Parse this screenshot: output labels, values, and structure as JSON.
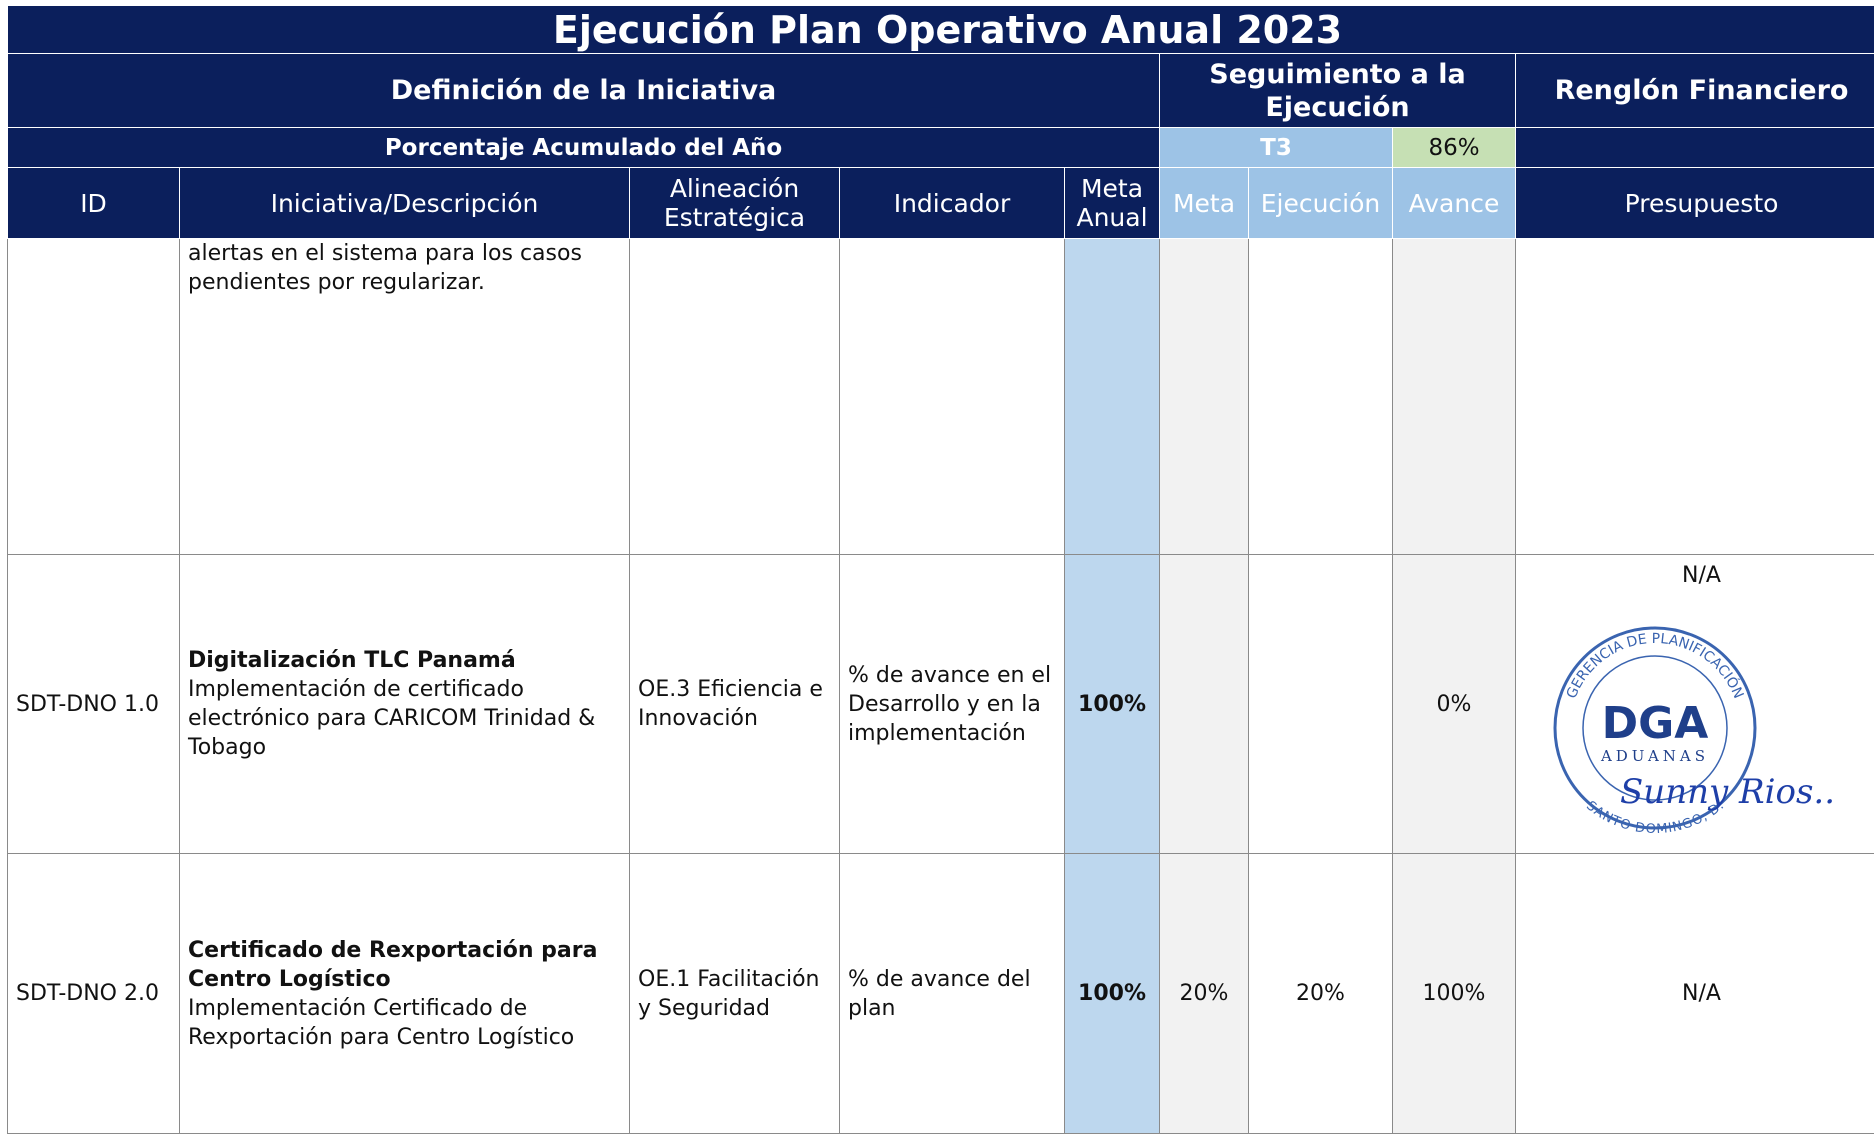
{
  "title": "Ejecución Plan Operativo Anual 2023",
  "groups": [
    "Definición de la Iniciativa",
    "Seguimiento a la Ejecución",
    "Renglón Financiero"
  ],
  "accumulated": {
    "label": "Porcentaje Acumulado del Año",
    "period": "T3",
    "value": "86%"
  },
  "columns": [
    "ID",
    "Iniciativa/Descripción",
    "Alineación Estratégica",
    "Indicador",
    "Meta Anual",
    "Meta",
    "Ejecución",
    "Avance",
    "Presupuesto"
  ],
  "rows": [
    {
      "description": "alertas en el sistema para los casos pendientes por regularizar."
    },
    {
      "id": "SDT-DNO 1.0",
      "title": "Digitalización TLC Panamá",
      "description": "Implementación de certificado electrónico para CARICOM Trinidad & Tobago",
      "alineacion": "OE.3 Eficiencia e Innovación",
      "indicador": "% de avance en el Desarrollo y en la implementación",
      "meta_anual": "100%",
      "avance": "0%",
      "presupuesto": "N/A"
    },
    {
      "id": "SDT-DNO 2.0",
      "title": "Certificado de Rexportación para Centro Logístico",
      "description": "Implementación Certificado de Rexportación para Centro Logístico",
      "alineacion": "OE.1 Facilitación y Seguridad",
      "indicador": "% de avance del plan",
      "meta_anual": "100%",
      "meta": "20%",
      "ejecucion": "20%",
      "avance": "100%",
      "presupuesto": "N/A"
    }
  ],
  "stamp": {
    "ring_top": "GERENCIA DE PLANIFICACIÓN",
    "logo": "DGA",
    "name": "ADUANAS",
    "ring_bottom": "SANTO DOMINGO, D.",
    "signature": "Sunny Rios.."
  }
}
